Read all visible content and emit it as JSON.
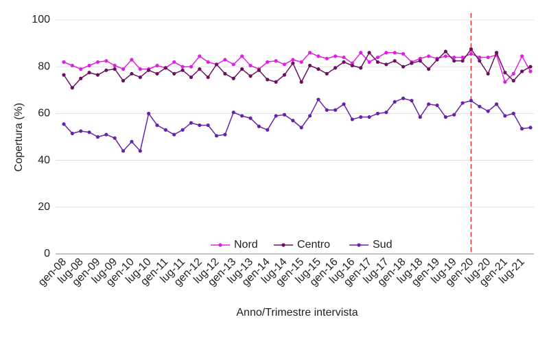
{
  "chart_data": {
    "type": "line",
    "x_label": "Anno/Trimestre intervista",
    "y_label": "Copertura (%)",
    "categories": [
      "gen-08",
      null,
      "lug-08",
      null,
      "gen-09",
      null,
      "lug-09",
      null,
      "gen-10",
      null,
      "lug-10",
      null,
      "gen-11",
      null,
      "lug-11",
      null,
      "gen-12",
      null,
      "lug-12",
      null,
      "gen-13",
      null,
      "lug-13",
      null,
      "gen-14",
      null,
      "lug-14",
      null,
      "gen-15",
      null,
      "lug-15",
      null,
      "gen-16",
      null,
      "lug-16",
      null,
      "gen-17",
      null,
      "lug-17",
      null,
      "gen-18",
      null,
      "lug-18",
      null,
      "gen-19",
      null,
      "lug-19",
      null,
      "gen-20",
      null,
      "lug-20",
      null,
      "gen-21",
      null,
      "lug-21",
      null
    ],
    "series": [
      {
        "name": "Nord",
        "color": "#e020e0",
        "values": [
          82,
          80.5,
          79,
          80.5,
          82,
          82.5,
          80.5,
          79,
          83,
          79,
          79,
          80.5,
          79.5,
          82,
          80,
          80,
          84.5,
          82,
          81,
          83,
          81,
          84.5,
          80.5,
          79,
          82,
          82.5,
          81,
          83,
          82,
          86,
          84.5,
          83.5,
          84.5,
          84,
          81.5,
          86,
          82,
          84,
          86,
          86,
          85.5,
          82,
          83.5,
          84.5,
          83.5,
          84.5,
          84,
          84,
          85.5,
          84,
          84,
          85,
          73.5,
          77,
          84.5,
          78
        ]
      },
      {
        "name": "Centro",
        "color": "#6b1060",
        "values": [
          76.5,
          71,
          75,
          77.5,
          76.5,
          78.5,
          79,
          74,
          77,
          75.5,
          78.5,
          77,
          79.5,
          77,
          78.5,
          75.5,
          79,
          75.5,
          81,
          77,
          75,
          79,
          76,
          78.5,
          74.5,
          73.5,
          76.5,
          81.5,
          73.5,
          80.5,
          79,
          77,
          79.5,
          82,
          80.5,
          79.5,
          86,
          82,
          81,
          82.5,
          80,
          81.5,
          82.5,
          79,
          83,
          86.5,
          82.5,
          82.5,
          87.5,
          82.5,
          77,
          86,
          77.5,
          74,
          78,
          80
        ]
      },
      {
        "name": "Sud",
        "color": "#6622aa",
        "values": [
          55.5,
          51.5,
          52.5,
          52,
          50,
          51,
          49.5,
          44,
          48,
          44,
          60,
          55,
          53,
          51,
          53,
          56,
          55,
          55,
          50.5,
          51,
          60.5,
          59,
          58,
          54.5,
          53,
          59,
          59.5,
          57,
          54,
          59,
          66,
          61.5,
          61.5,
          64,
          57.5,
          58.5,
          58.5,
          60,
          60.5,
          65,
          66.5,
          65.5,
          58.5,
          64,
          63.5,
          58.5,
          59.5,
          64.5,
          65.5,
          63,
          61,
          64,
          59,
          60,
          53.5,
          54
        ]
      }
    ],
    "ylim": [
      0,
      100
    ],
    "yticks": [
      0,
      20,
      40,
      60,
      80,
      100
    ],
    "grid": true,
    "legend": "lower center",
    "vline": {
      "category": "gen-20",
      "color": "#e03030"
    }
  }
}
